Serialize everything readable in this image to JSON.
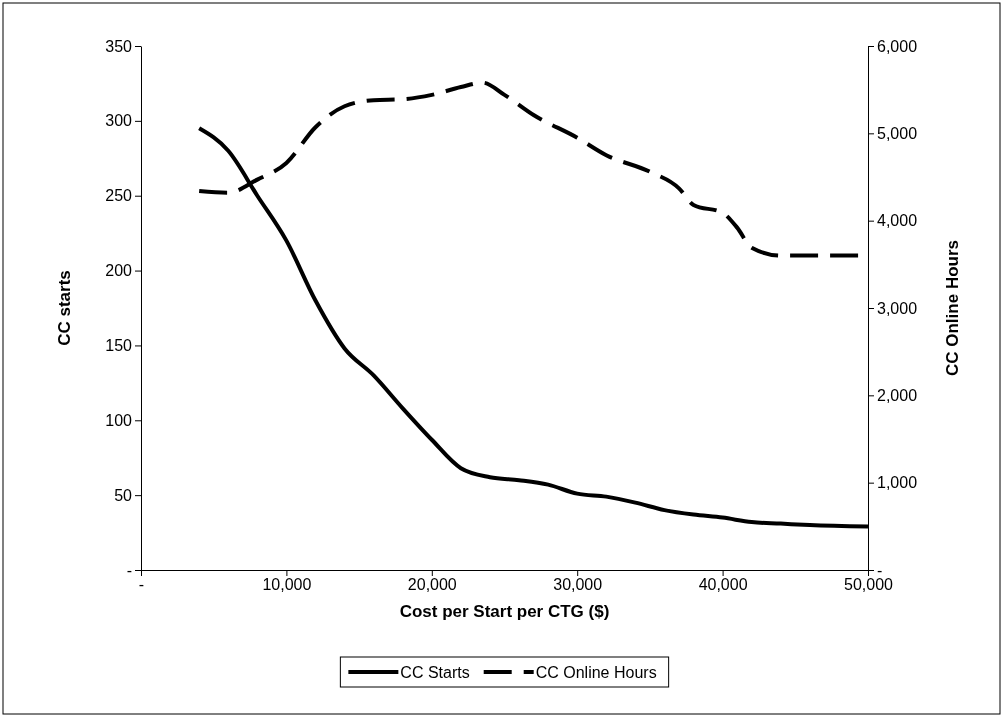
{
  "chart_data": {
    "type": "line",
    "xlabel": "Cost per Start per CTG ($)",
    "ylabel": "CC starts",
    "y2label": "CC Online Hours",
    "xlim": [
      0,
      50000
    ],
    "xticks": [
      {
        "value": 0,
        "label": "-"
      },
      {
        "value": 10000,
        "label": "10,000"
      },
      {
        "value": 20000,
        "label": "20,000"
      },
      {
        "value": 30000,
        "label": "30,000"
      },
      {
        "value": 40000,
        "label": "40,000"
      },
      {
        "value": 50000,
        "label": "50,000"
      }
    ],
    "ylim": [
      0,
      350
    ],
    "yticks": [
      {
        "value": 0,
        "label": "-"
      },
      50,
      100,
      150,
      200,
      250,
      300,
      350
    ],
    "y2lim": [
      0,
      6000
    ],
    "y2ticks": [
      {
        "value": 0,
        "label": "-"
      },
      {
        "value": 1000,
        "label": "1,000"
      },
      {
        "value": 2000,
        "label": "2,000"
      },
      {
        "value": 3000,
        "label": "3,000"
      },
      {
        "value": 4000,
        "label": "4,000"
      },
      {
        "value": 5000,
        "label": "5,000"
      },
      {
        "value": 6000,
        "label": "6,000"
      }
    ],
    "legend": "bottom",
    "grid": false,
    "marker": "none",
    "series": [
      {
        "name": "CC Starts",
        "color": "#000000",
        "line_style": "solid",
        "x": [
          4000,
          6000,
          8000,
          10000,
          12000,
          14000,
          16000,
          18000,
          20000,
          22000,
          24000,
          26000,
          28000,
          30000,
          32000,
          34000,
          36000,
          38000,
          40000,
          42000,
          44000,
          46000,
          50000
        ],
        "values": [
          295,
          280,
          250,
          220,
          180,
          148,
          130,
          108,
          87,
          68,
          62,
          60,
          57,
          51,
          49,
          45,
          40,
          37,
          35,
          32,
          31,
          30,
          29
        ]
      },
      {
        "name": "CC Online Hours",
        "color": "#000000",
        "line_style": "dashed",
        "axis": "y2",
        "x": [
          4000,
          6000,
          8000,
          10000,
          12000,
          14000,
          16000,
          18000,
          20000,
          22000,
          23500,
          25000,
          27000,
          30000,
          32000,
          35000,
          37000,
          38000,
          40000,
          41000,
          42000,
          44000,
          48000,
          50000
        ],
        "values": [
          4340,
          4320,
          4470,
          4660,
          5070,
          5310,
          5380,
          5390,
          5440,
          5530,
          5580,
          5440,
          5210,
          4950,
          4750,
          4560,
          4370,
          4180,
          4090,
          3920,
          3690,
          3600,
          3600,
          3600
        ]
      }
    ]
  }
}
